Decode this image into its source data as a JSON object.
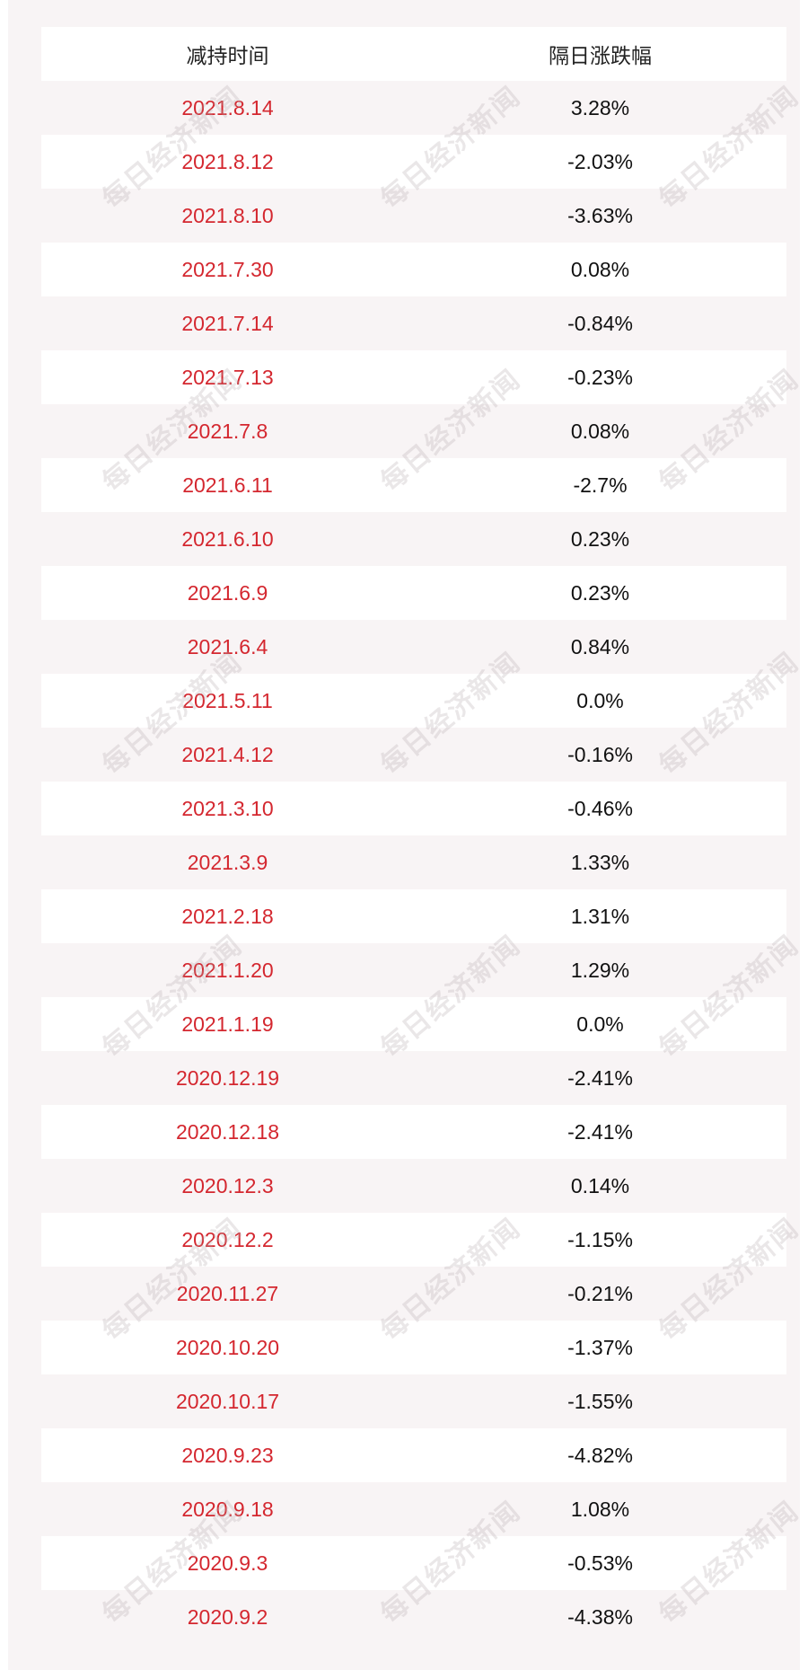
{
  "table": {
    "header": [
      "减持时间",
      "隔日涨跌幅"
    ],
    "rows": [
      [
        "2021.8.14",
        "3.28%"
      ],
      [
        "2021.8.12",
        "-2.03%"
      ],
      [
        "2021.8.10",
        "-3.63%"
      ],
      [
        "2021.7.30",
        "0.08%"
      ],
      [
        "2021.7.14",
        "-0.84%"
      ],
      [
        "2021.7.13",
        "-0.23%"
      ],
      [
        "2021.7.8",
        "0.08%"
      ],
      [
        "2021.6.11",
        "-2.7%"
      ],
      [
        "2021.6.10",
        "0.23%"
      ],
      [
        "2021.6.9",
        "0.23%"
      ],
      [
        "2021.6.4",
        "0.84%"
      ],
      [
        "2021.5.11",
        "0.0%"
      ],
      [
        "2021.4.12",
        "-0.16%"
      ],
      [
        "2021.3.10",
        "-0.46%"
      ],
      [
        "2021.3.9",
        "1.33%"
      ],
      [
        "2021.2.18",
        "1.31%"
      ],
      [
        "2021.1.20",
        "1.29%"
      ],
      [
        "2021.1.19",
        "0.0%"
      ],
      [
        "2020.12.19",
        "-2.41%"
      ],
      [
        "2020.12.18",
        "-2.41%"
      ],
      [
        "2020.12.3",
        "0.14%"
      ],
      [
        "2020.12.2",
        "-1.15%"
      ],
      [
        "2020.11.27",
        "-0.21%"
      ],
      [
        "2020.10.20",
        "-1.37%"
      ],
      [
        "2020.10.17",
        "-1.55%"
      ],
      [
        "2020.9.23",
        "-4.82%"
      ],
      [
        "2020.9.18",
        "1.08%"
      ],
      [
        "2020.9.3",
        "-0.53%"
      ],
      [
        "2020.9.2",
        "-4.38%"
      ]
    ]
  },
  "watermark": "每日经济新闻"
}
